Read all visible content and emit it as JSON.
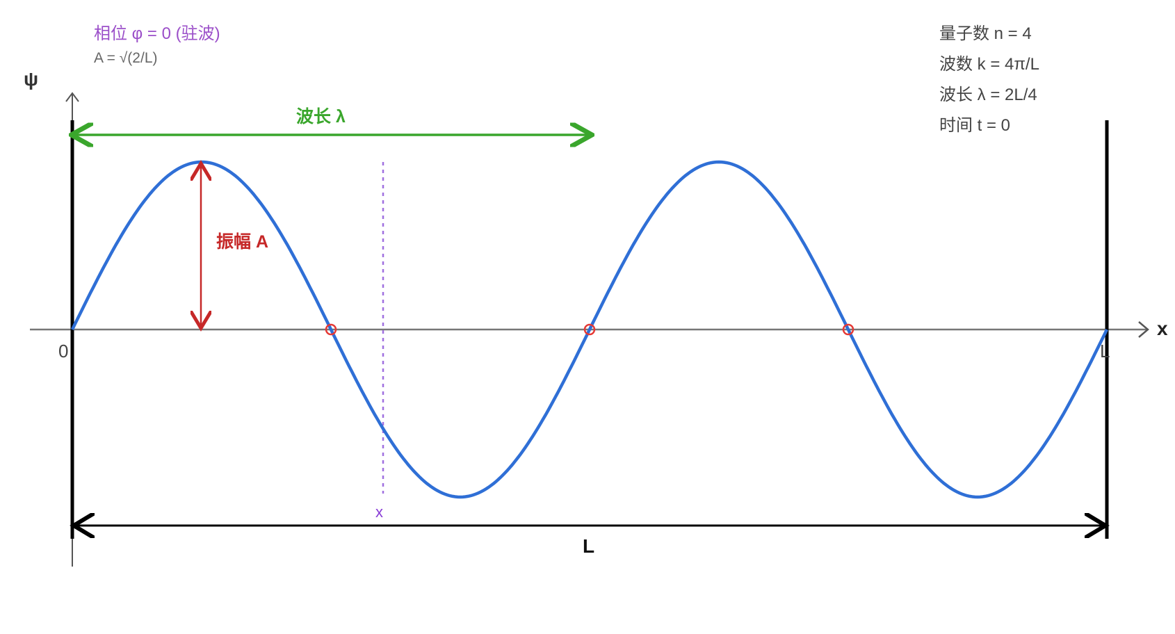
{
  "header": {
    "phase": "相位 φ = 0 (驻波)",
    "amplitude_formula": "A = √(2/L)"
  },
  "info": {
    "quantum_number": "量子数 n = 4",
    "wave_number": "波数 k = 4π/L",
    "wavelength": "波长 λ = 2L/4",
    "time": "时间 t = 0"
  },
  "axes": {
    "y_label": "ψ",
    "x_label": "x",
    "origin_label": "0",
    "end_label": "L"
  },
  "annotations": {
    "wavelength_label": "波长 λ",
    "amplitude_label": "振幅 A",
    "position_label": "x",
    "length_label": "L"
  },
  "wave": {
    "periods_shown": 2,
    "nodes_marked": [
      0.25,
      0.5,
      0.75
    ]
  },
  "colors": {
    "wave": "#2f6fd6",
    "node": "#e53935",
    "wavelength": "#3aa62c",
    "amplitude": "#c62828",
    "position": "#a070e0",
    "phase_text": "#9b4fc9"
  }
}
